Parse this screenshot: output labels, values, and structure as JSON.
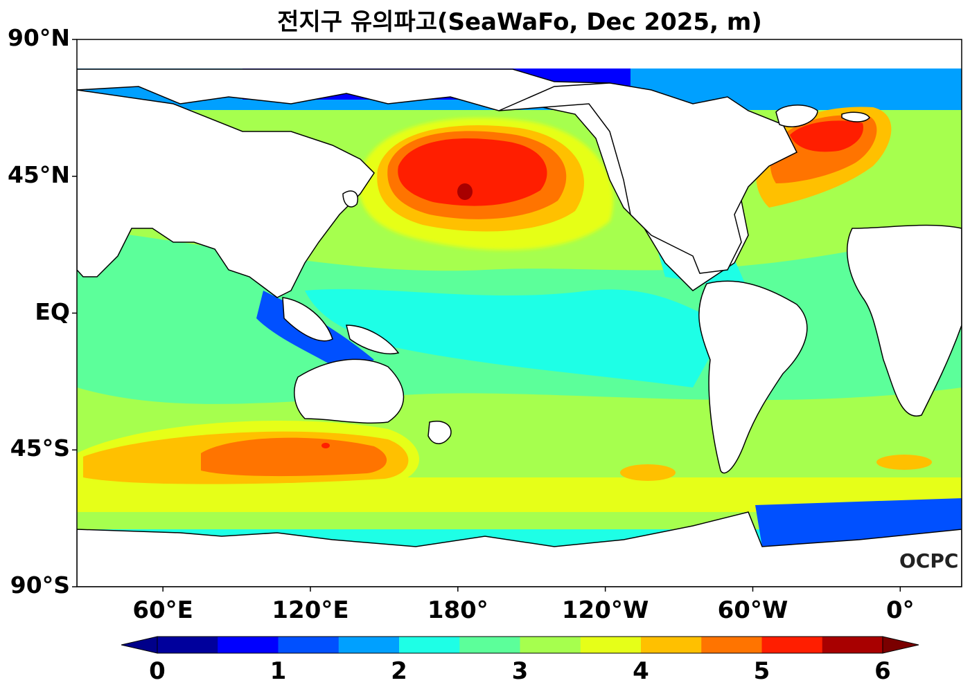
{
  "title": "전지구 유의파고(SeaWaFo, Dec 2025, m)",
  "watermark": "OCPC",
  "lat_labels": [
    {
      "text": "90°N",
      "lat": 90
    },
    {
      "text": "45°N",
      "lat": 45
    },
    {
      "text": "EQ",
      "lat": 0
    },
    {
      "text": "45°S",
      "lat": -45
    },
    {
      "text": "90°S",
      "lat": -90
    }
  ],
  "lon_labels": [
    {
      "text": "60°E",
      "lon": 60
    },
    {
      "text": "120°E",
      "lon": 120
    },
    {
      "text": "180°",
      "lon": 180
    },
    {
      "text": "120°W",
      "lon": 240
    },
    {
      "text": "60°W",
      "lon": 300
    },
    {
      "text": "0°",
      "lon": 360
    }
  ],
  "colorbar": {
    "min": 0,
    "max": 6,
    "step": 0.5,
    "tick_labels": [
      "0",
      "1",
      "2",
      "3",
      "4",
      "5",
      "6"
    ],
    "colors": [
      "#00009c",
      "#0000ff",
      "#0050ff",
      "#00a0ff",
      "#1effe6",
      "#5cff9a",
      "#a6ff4e",
      "#e6ff18",
      "#ffc000",
      "#ff7400",
      "#ff1e00",
      "#a80000"
    ],
    "under_color": "#00008a",
    "over_color": "#7a0000"
  },
  "legend": {
    "land_color": "#ffffff",
    "coast_color": "#000000"
  }
}
